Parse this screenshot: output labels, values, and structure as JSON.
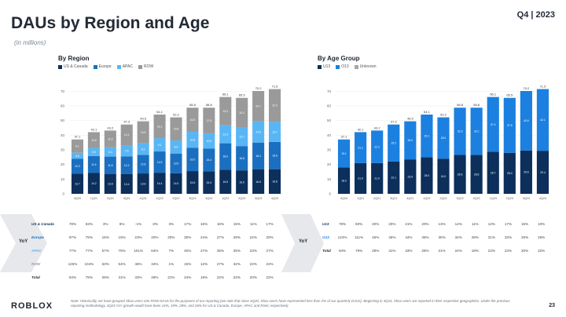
{
  "title": "DAUs by Region and Age",
  "subtitle": "(in millions)",
  "quarter": "Q4 | 2023",
  "yoy_label": "YoY",
  "colors": {
    "us_canada": "#0c2f5b",
    "europe": "#1b6fc0",
    "apac": "#59b6f5",
    "row": "#9a9a9a",
    "u13": "#0c2f5b",
    "o13": "#1b80e0",
    "unknown": "#a6a6a6"
  },
  "chart_data": [
    {
      "type": "bar",
      "stacked": true,
      "title": "By Region",
      "categories": [
        "4Q20",
        "1Q21",
        "2Q21",
        "3Q21",
        "4Q21",
        "1Q22",
        "2Q22",
        "3Q22",
        "4Q22",
        "1Q23",
        "2Q23",
        "3Q23",
        "4Q23"
      ],
      "ylim": [
        0,
        75
      ],
      "yticks": [
        0,
        10,
        20,
        30,
        40,
        50,
        60,
        70
      ],
      "totals": [
        "37.1",
        "42.1",
        "43.2",
        "47.3",
        "49.5",
        "54.1",
        "52.2",
        "58.8",
        "58.8",
        "66.1",
        "65.5",
        "70.2",
        "71.5"
      ],
      "series": [
        {
          "name": "US & Canada",
          "key": "us_canada",
          "values": [
            13.7,
            14.2,
            13.6,
            13.4,
            13.9,
            14.4,
            14.0,
            15.5,
            15.4,
            16.5,
            16.0,
            16.6,
            16.8
          ]
        },
        {
          "name": "Europe",
          "key": "europe",
          "values": [
            10.3,
            11.6,
            11.8,
            12.2,
            12.6,
            14.5,
            13.5,
            16.0,
            15.4,
            18.0,
            16.6,
            18.4,
            18.6
          ]
        },
        {
          "name": "APAC",
          "key": "apac",
          "values": [
            4.0,
            5.5,
            6.3,
            7.6,
            8.1,
            9.1,
            8.9,
            10.8,
            10.5,
            12.3,
            12.7,
            14.5,
            13.7
          ]
        },
        {
          "name": "ROW",
          "key": "row",
          "values": [
            9.1,
            10.8,
            11.5,
            14.1,
            14.9,
            16.1,
            15.8,
            16.5,
            17.5,
            19.3,
            20.2,
            20.7,
            22.4
          ]
        }
      ]
    },
    {
      "type": "bar",
      "stacked": true,
      "title": "By Age Group",
      "categories": [
        "4Q20",
        "1Q21",
        "2Q21",
        "3Q21",
        "4Q21",
        "1Q22",
        "2Q22",
        "3Q22",
        "4Q22",
        "1Q23",
        "2Q23",
        "3Q23",
        "4Q23"
      ],
      "ylim": [
        0,
        75
      ],
      "yticks": [
        0,
        10,
        20,
        30,
        40,
        50,
        60,
        70
      ],
      "totals": [
        "37.1",
        "42.1",
        "43.2",
        "47.3",
        "49.5",
        "54.1",
        "52.2",
        "58.8",
        "58.8",
        "66.1",
        "65.5",
        "70.2",
        "71.5"
      ],
      "series": [
        {
          "name": "U13",
          "key": "u13",
          "values": [
            18.0,
            21.0,
            21.0,
            22.1,
            23.5,
            25.0,
            24.0,
            26.5,
            26.6,
            28.7,
            28.0,
            29.6,
            29.4
          ]
        },
        {
          "name": "O13",
          "key": "o13",
          "values": [
            19.1,
            21.1,
            22.2,
            25.2,
            26.0,
            29.1,
            28.2,
            32.3,
            32.2,
            37.4,
            37.5,
            40.6,
            42.1
          ]
        },
        {
          "name": "Unknown",
          "key": "unknown",
          "values": [
            0,
            0,
            0,
            0,
            0,
            0,
            0,
            0,
            0,
            0,
            0,
            0,
            0
          ]
        }
      ]
    }
  ],
  "region_yoy": [
    {
      "label": "US & Canada",
      "key": "us_canada",
      "values": [
        "78%",
        "63%",
        "3%",
        "8%",
        "-1%",
        "-3%",
        "3%",
        "17%",
        "16%",
        "16%",
        "15%",
        "11%",
        "17%"
      ]
    },
    {
      "label": "Europe",
      "key": "europe",
      "values": [
        "97%",
        "79%",
        "16%",
        "15%",
        "23%",
        "20%",
        "20%",
        "30%",
        "24%",
        "27%",
        "29%",
        "22%",
        "20%"
      ]
    },
    {
      "label": "APAC",
      "key": "apac",
      "values": [
        "77%",
        "77%",
        "57%",
        "75%",
        "101%",
        "64%",
        "7%",
        "40%",
        "27%",
        "35%",
        "25%",
        "23%",
        "27%"
      ]
    },
    {
      "label": "ROW",
      "key": "row",
      "values": [
        "126%",
        "104%",
        "63%",
        "54%",
        "46%",
        "34%",
        "1%",
        "15%",
        "12%",
        "27%",
        "32%",
        "22%",
        "22%"
      ]
    },
    {
      "label": "Total",
      "key": "total",
      "values": [
        "94%",
        "79%",
        "29%",
        "31%",
        "33%",
        "28%",
        "21%",
        "24%",
        "19%",
        "22%",
        "23%",
        "20%",
        "22%"
      ]
    }
  ],
  "age_yoy": [
    {
      "label": "U13",
      "key": "u13",
      "values": [
        "78%",
        "60%",
        "20%",
        "20%",
        "21%",
        "20%",
        "13%",
        "14%",
        "11%",
        "12%",
        "17%",
        "15%",
        "10%"
      ]
    },
    {
      "label": "O13",
      "key": "o13",
      "values": [
        "124%",
        "111%",
        "46%",
        "46%",
        "44%",
        "36%",
        "30%",
        "34%",
        "28%",
        "31%",
        "33%",
        "25%",
        "26%"
      ]
    },
    {
      "label": "Total",
      "key": "total",
      "values": [
        "94%",
        "79%",
        "29%",
        "31%",
        "33%",
        "28%",
        "21%",
        "24%",
        "19%",
        "22%",
        "23%",
        "20%",
        "22%"
      ]
    }
  ],
  "footer": {
    "logo": "ROBLOX",
    "note": "Note: Historically, we have grouped Xbox users into ROW DAUs for the purposes of our reporting (we note that since 4Q20, Xbox users have represented less than 2% of our quarterly DAUs). Beginning in 4Q23, Xbox users are reported in their respective geographies. Under the previous reporting methodology, 4Q23 YoY growth would have been 14%, 19%, 28%, and 26% for US & Canada, Europe, APAC and RoW, respectively.",
    "page": "23"
  }
}
